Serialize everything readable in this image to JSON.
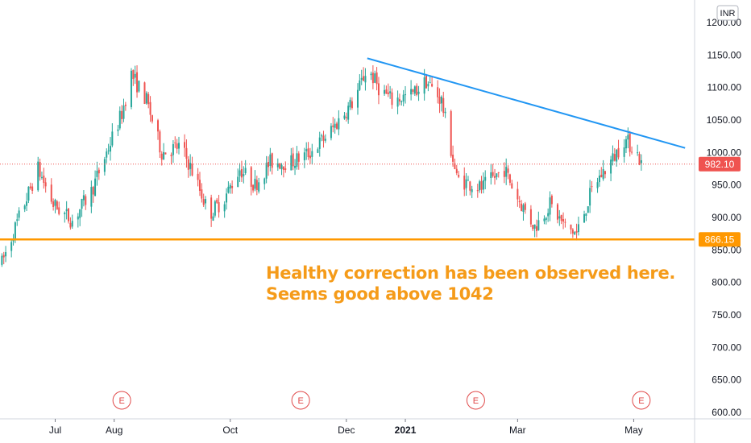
{
  "chart_data": {
    "type": "candlestick",
    "currency": "INR",
    "y_ticks": [
      "1200.00",
      "1150.00",
      "1100.00",
      "1050.00",
      "1000.00",
      "950.00",
      "900.00",
      "850.00",
      "800.00",
      "750.00",
      "700.00",
      "650.00",
      "600.00"
    ],
    "x_ticks": [
      {
        "label": "Jul",
        "date": "2020-07-01",
        "bold": false
      },
      {
        "label": "Aug",
        "date": "2020-08-01",
        "bold": false
      },
      {
        "label": "Oct",
        "date": "2020-10-01",
        "bold": false
      },
      {
        "label": "Dec",
        "date": "2020-12-01",
        "bold": false
      },
      {
        "label": "2021",
        "date": "2021-01-01",
        "bold": true
      },
      {
        "label": "Mar",
        "date": "2021-03-01",
        "bold": false
      },
      {
        "label": "May",
        "date": "2021-05-01",
        "bold": false
      }
    ],
    "ylim": [
      600,
      1200
    ],
    "date_range": [
      "2020-06-02",
      "2021-06-02"
    ],
    "price_path": [
      [
        "2020-06-03",
        830
      ],
      [
        "2020-06-12",
        900
      ],
      [
        "2020-06-22",
        975
      ],
      [
        "2020-06-30",
        920
      ],
      [
        "2020-07-10",
        895
      ],
      [
        "2020-07-20",
        940
      ],
      [
        "2020-07-28",
        1000
      ],
      [
        "2020-08-05",
        1060
      ],
      [
        "2020-08-10",
        1120
      ],
      [
        "2020-08-18",
        1080
      ],
      [
        "2020-08-26",
        1000
      ],
      [
        "2020-09-05",
        1010
      ],
      [
        "2020-09-12",
        965
      ],
      [
        "2020-09-20",
        905
      ],
      [
        "2020-09-28",
        930
      ],
      [
        "2020-10-06",
        975
      ],
      [
        "2020-10-14",
        950
      ],
      [
        "2020-10-22",
        985
      ],
      [
        "2020-11-02",
        985
      ],
      [
        "2020-11-12",
        1000
      ],
      [
        "2020-11-22",
        1030
      ],
      [
        "2020-12-05",
        1080
      ],
      [
        "2020-12-12",
        1130
      ],
      [
        "2020-12-18",
        1100
      ],
      [
        "2020-12-25",
        1080
      ],
      [
        "2021-01-05",
        1090
      ],
      [
        "2021-01-12",
        1110
      ],
      [
        "2021-01-20",
        1080
      ],
      [
        "2021-01-28",
        960
      ],
      [
        "2021-02-10",
        945
      ],
      [
        "2021-02-22",
        975
      ],
      [
        "2021-03-01",
        930
      ],
      [
        "2021-03-10",
        885
      ],
      [
        "2021-03-18",
        920
      ],
      [
        "2021-03-26",
        885
      ],
      [
        "2021-04-01",
        875
      ],
      [
        "2021-04-10",
        950
      ],
      [
        "2021-04-20",
        990
      ],
      [
        "2021-04-26",
        1020
      ],
      [
        "2021-05-02",
        1005
      ],
      [
        "2021-05-05",
        982
      ]
    ],
    "last_price": "982.10",
    "support_level": "866.15",
    "support_line": {
      "y": 866.15,
      "color": "#ff9800"
    },
    "trendline": {
      "start": [
        "2020-12-12",
        1145
      ],
      "end": [
        "2021-05-28",
        1007
      ],
      "color": "#2196f3"
    },
    "colors": {
      "up": "#26a69a",
      "down": "#ef5350",
      "last_price_bg": "#ef5350",
      "support_bg": "#ff9800",
      "annotation": "#f59b19",
      "earnings": "#e04a4a"
    },
    "annotations": [
      "Healthy correction has been observed here.",
      "Seems good above 1042"
    ],
    "earnings_markers": [
      {
        "label": "E",
        "date": "2020-08-05"
      },
      {
        "label": "E",
        "date": "2020-11-07"
      },
      {
        "label": "E",
        "date": "2021-02-07"
      },
      {
        "label": "E",
        "date": "2021-05-05"
      }
    ],
    "grid": false
  }
}
